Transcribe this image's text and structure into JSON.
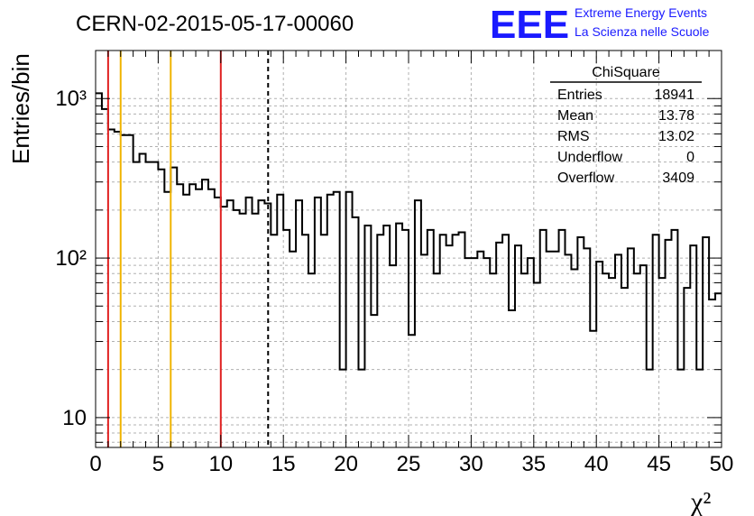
{
  "header": {
    "run_title": "CERN-02-2015-05-17-00060",
    "logo_text": "EEE",
    "logo_line1": "Extreme Energy Events",
    "logo_line2": "La Scienza nelle Scuole"
  },
  "stats_box": {
    "title": "ChiSquare",
    "rows": [
      {
        "label": "Entries",
        "value": "18941"
      },
      {
        "label": "Mean",
        "value": "13.78"
      },
      {
        "label": "RMS",
        "value": "13.02"
      },
      {
        "label": "Underflow",
        "value": "0"
      },
      {
        "label": "Overflow",
        "value": "3409"
      }
    ]
  },
  "colors": {
    "logo_blue": "#1a1aff",
    "red_line": "#e02020",
    "yellow_line": "#f0b400",
    "grid": "#b0b0b0",
    "hist": "#000000"
  },
  "chart_data": {
    "type": "histogram",
    "title": "CERN-02-2015-05-17-00060",
    "xlabel": "χ²",
    "ylabel": "Entries/bin",
    "xlim": [
      0,
      50
    ],
    "ylim": [
      6.5,
      2000
    ],
    "y_scale": "log",
    "grid": true,
    "bin_width": 0.5,
    "x_ticks": [
      0,
      5,
      10,
      15,
      20,
      25,
      30,
      35,
      40,
      45,
      50
    ],
    "x_tick_labels": [
      "0",
      "5",
      "10",
      "15",
      "20",
      "25",
      "30",
      "35",
      "40",
      "45",
      "50"
    ],
    "y_tick_labels": [
      {
        "value": 10,
        "label": "10"
      },
      {
        "value": 100,
        "label": "10²"
      },
      {
        "value": 1000,
        "label": "10³"
      }
    ],
    "counts": [
      1080,
      860,
      640,
      620,
      590,
      590,
      400,
      450,
      400,
      400,
      360,
      260,
      370,
      290,
      250,
      290,
      270,
      310,
      270,
      240,
      210,
      230,
      200,
      190,
      240,
      190,
      230,
      220,
      140,
      250,
      150,
      110,
      230,
      140,
      80,
      240,
      140,
      250,
      260,
      20,
      260,
      180,
      20,
      160,
      44,
      140,
      160,
      90,
      165,
      150,
      33,
      230,
      105,
      150,
      80,
      140,
      120,
      140,
      145,
      100,
      100,
      110,
      100,
      80,
      125,
      140,
      47,
      120,
      80,
      100,
      70,
      150,
      110,
      110,
      150,
      105,
      85,
      135,
      115,
      35,
      95,
      80,
      75,
      105,
      65,
      115,
      80,
      90,
      20,
      140,
      75,
      130,
      150,
      20,
      65,
      120,
      20,
      135,
      55,
      60
    ],
    "vertical_lines": [
      {
        "x": 1,
        "color": "red",
        "style": "solid"
      },
      {
        "x": 2,
        "color": "yellow",
        "style": "solid"
      },
      {
        "x": 6,
        "color": "yellow",
        "style": "solid"
      },
      {
        "x": 10,
        "color": "red",
        "style": "solid"
      },
      {
        "x": 13.78,
        "color": "black",
        "style": "dashed"
      }
    ]
  }
}
